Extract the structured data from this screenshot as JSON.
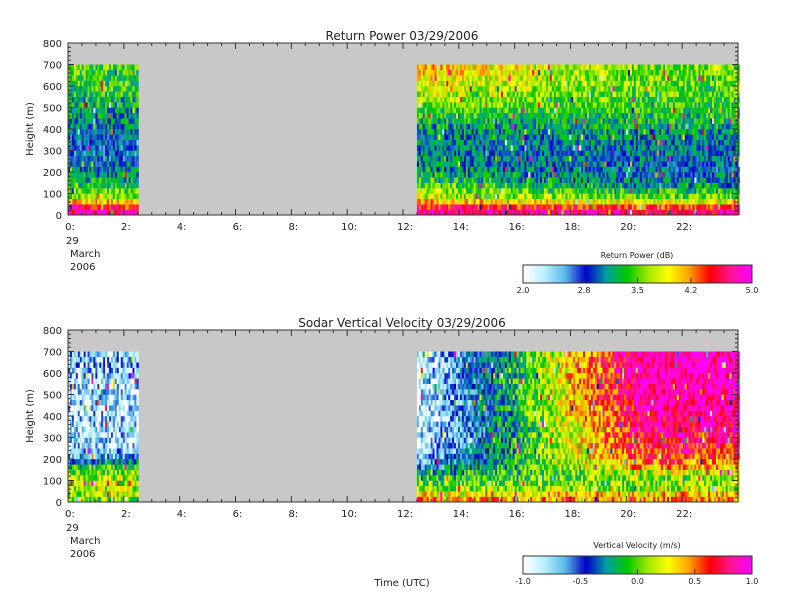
{
  "chart_data": [
    {
      "type": "heatmap",
      "title": "Return Power 03/29/2006",
      "ylabel": "Height (m)",
      "xlabel": "",
      "xlim": [
        0,
        24
      ],
      "ylim": [
        0,
        800
      ],
      "x_ticks": [
        "0:",
        "2:",
        "4:",
        "6:",
        "8:",
        "10:",
        "12:",
        "14:",
        "16:",
        "18:",
        "20:",
        "22:"
      ],
      "y_ticks": [
        "0",
        "100",
        "200",
        "300",
        "400",
        "500",
        "600",
        "700",
        "800"
      ],
      "date_lines": [
        "29",
        "March",
        "2006"
      ],
      "data_periods": [
        [
          0.0,
          2.5
        ],
        [
          12.5,
          24.0
        ]
      ],
      "max_height": 710,
      "colorbar": {
        "label": "Return Power (dB)",
        "min": 2.0,
        "max": 5.0,
        "tick_labels": [
          "2.0",
          "2.8",
          "3.5",
          "4.2",
          "5.0"
        ],
        "tick_values": [
          2.0,
          2.8,
          3.5,
          4.2,
          5.0
        ]
      },
      "profile": {
        "heights": [
          25,
          50,
          75,
          100,
          125,
          150,
          175,
          200,
          250,
          300,
          350,
          400,
          450,
          500,
          550,
          600,
          650,
          700
        ],
        "morning": [
          4.8,
          4.4,
          3.7,
          3.6,
          3.4,
          3.3,
          3.2,
          3.1,
          2.9,
          2.85,
          2.9,
          3.0,
          3.1,
          3.2,
          3.3,
          3.4,
          3.4,
          3.5
        ],
        "afternoon_early": [
          4.8,
          4.3,
          3.8,
          3.7,
          3.5,
          3.4,
          3.3,
          3.2,
          3.1,
          3.0,
          3.0,
          3.1,
          3.3,
          3.5,
          3.7,
          3.9,
          4.0,
          4.1
        ],
        "afternoon_late": [
          4.7,
          4.1,
          3.6,
          3.4,
          3.2,
          3.1,
          3.0,
          2.9,
          2.95,
          3.0,
          3.1,
          3.2,
          3.3,
          3.4,
          3.45,
          3.5,
          3.55,
          3.6
        ]
      }
    },
    {
      "type": "heatmap",
      "title": "Sodar Vertical Velocity 03/29/2006",
      "ylabel": "Height (m)",
      "xlabel": "Time (UTC)",
      "xlim": [
        0,
        24
      ],
      "ylim": [
        0,
        800
      ],
      "x_ticks": [
        "0:",
        "2:",
        "4:",
        "6:",
        "8:",
        "10:",
        "12:",
        "14:",
        "16:",
        "18:",
        "20:",
        "22:"
      ],
      "y_ticks": [
        "0",
        "100",
        "200",
        "300",
        "400",
        "500",
        "600",
        "700",
        "800"
      ],
      "date_lines": [
        "29",
        "March",
        "2006"
      ],
      "data_periods": [
        [
          0.0,
          2.5
        ],
        [
          12.5,
          24.0
        ]
      ],
      "max_height": 710,
      "colorbar": {
        "label": "Vertical Velocity (m/s)",
        "min": -1.0,
        "max": 1.0,
        "tick_labels": [
          "-1.0",
          "-0.5",
          "0.0",
          "0.5",
          "1.0"
        ],
        "tick_values": [
          -1.0,
          -0.5,
          0.0,
          0.5,
          1.0
        ]
      },
      "profile": {
        "heights": [
          25,
          50,
          75,
          100,
          125,
          150,
          175,
          200,
          250,
          300,
          350,
          400,
          450,
          500,
          550,
          600,
          650,
          700
        ],
        "morning": [
          0.05,
          0.1,
          0.15,
          0.15,
          0.1,
          0.05,
          -0.2,
          -0.5,
          -0.8,
          -0.8,
          -0.8,
          -0.8,
          -0.8,
          -0.8,
          -0.8,
          -0.75,
          -0.7,
          -0.7
        ],
        "afternoon_early": [
          0.5,
          0.1,
          0.0,
          0.0,
          -0.2,
          -0.4,
          -0.55,
          -0.7,
          -0.8,
          -0.85,
          -0.9,
          -0.9,
          -0.9,
          -0.9,
          -0.9,
          -0.9,
          -0.9,
          -0.9
        ],
        "afternoon_late": [
          0.5,
          0.2,
          0.1,
          0.05,
          0.1,
          0.3,
          0.5,
          0.6,
          0.7,
          0.75,
          0.8,
          0.85,
          0.9,
          0.9,
          0.95,
          0.95,
          0.95,
          0.95
        ]
      }
    }
  ],
  "colors": {
    "missing": "#c8c8c8",
    "colormap": [
      "#ffffff",
      "#b8f0ff",
      "#5ab8e8",
      "#0000c8",
      "#00a0a0",
      "#00c800",
      "#a0e600",
      "#ffff00",
      "#ffa000",
      "#ff0000",
      "#ff1493",
      "#ff00ff"
    ]
  }
}
